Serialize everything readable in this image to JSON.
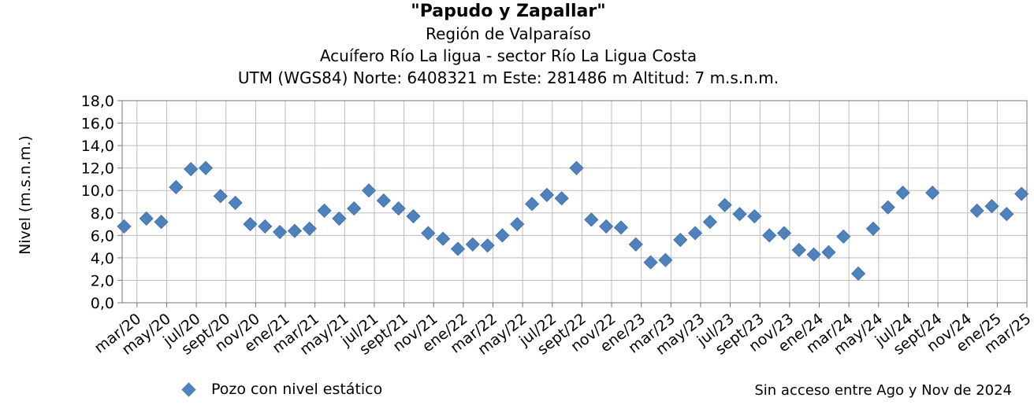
{
  "chart_data": {
    "type": "scatter",
    "title": "\"Papudo y Zapallar\"",
    "subtitles": [
      "Región de Valparaíso",
      "Acuífero Río La ligua - sector Río La Ligua Costa",
      "UTM (WGS84) Norte: 6408321 m Este: 281486 m   Altitud: 7 m.s.n.m."
    ],
    "ylabel": "Nivel (m.s.n.m.)",
    "ylim": [
      0,
      18
    ],
    "yticks": [
      "0,0",
      "2,0",
      "4,0",
      "6,0",
      "8,0",
      "10,0",
      "12,0",
      "14,0",
      "16,0",
      "18,0"
    ],
    "xticks": [
      "mar/20",
      "may/20",
      "jul/20",
      "sept/20",
      "nov/20",
      "ene/21",
      "mar/21",
      "may/21",
      "jul/21",
      "sept/21",
      "nov/21",
      "ene/22",
      "mar/22",
      "may/22",
      "jul/22",
      "sept/22",
      "nov/22",
      "ene/23",
      "mar/23",
      "may/23",
      "jul/23",
      "sept/23",
      "nov/23",
      "ene/24",
      "mar/24",
      "may/24",
      "jul/24",
      "sept/24",
      "nov/24",
      "ene/25",
      "mar/25"
    ],
    "grid": true,
    "series": [
      {
        "name": "Pozo con nivel estático",
        "color": "#4f81bd",
        "x": [
          "2020-03-05",
          "2020-04-20",
          "2020-05-20",
          "2020-06-20",
          "2020-07-20",
          "2020-08-20",
          "2020-09-20",
          "2020-10-20",
          "2020-11-20",
          "2020-12-20",
          "2021-01-20",
          "2021-02-20",
          "2021-03-20",
          "2021-04-20",
          "2021-05-20",
          "2021-06-20",
          "2021-07-20",
          "2021-08-20",
          "2021-09-20",
          "2021-10-20",
          "2021-11-20",
          "2021-12-20",
          "2022-01-20",
          "2022-02-20",
          "2022-03-20",
          "2022-04-20",
          "2022-05-20",
          "2022-06-20",
          "2022-07-20",
          "2022-08-20",
          "2022-09-20",
          "2022-10-20",
          "2022-11-20",
          "2022-12-20",
          "2023-01-20",
          "2023-02-20",
          "2023-03-20",
          "2023-04-20",
          "2023-05-20",
          "2023-06-20",
          "2023-07-20",
          "2023-08-20",
          "2023-09-20",
          "2023-10-20",
          "2023-11-20",
          "2023-12-20",
          "2024-01-20",
          "2024-02-20",
          "2024-03-20",
          "2024-04-20",
          "2024-05-20",
          "2024-06-20",
          "2024-07-20",
          "2024-09-20",
          "2024-12-20",
          "2025-01-20",
          "2025-02-20",
          "2025-03-20"
        ],
        "y": [
          6.8,
          7.5,
          7.2,
          10.3,
          11.9,
          12.0,
          9.5,
          8.9,
          7.0,
          6.8,
          6.3,
          6.4,
          6.6,
          8.2,
          7.5,
          8.4,
          10.0,
          9.1,
          8.4,
          7.7,
          6.2,
          5.7,
          4.8,
          5.2,
          5.1,
          6.0,
          7.0,
          8.8,
          9.6,
          9.3,
          12.0,
          7.4,
          6.8,
          6.7,
          5.2,
          3.6,
          3.8,
          5.6,
          6.2,
          7.2,
          8.7,
          7.9,
          7.7,
          6.0,
          6.2,
          4.7,
          4.3,
          4.5,
          5.9,
          2.6,
          6.6,
          8.5,
          9.8,
          9.8,
          8.2,
          8.6,
          7.9,
          9.7
        ]
      }
    ],
    "note": "Sin acceso entre Ago y Nov de 2024"
  }
}
